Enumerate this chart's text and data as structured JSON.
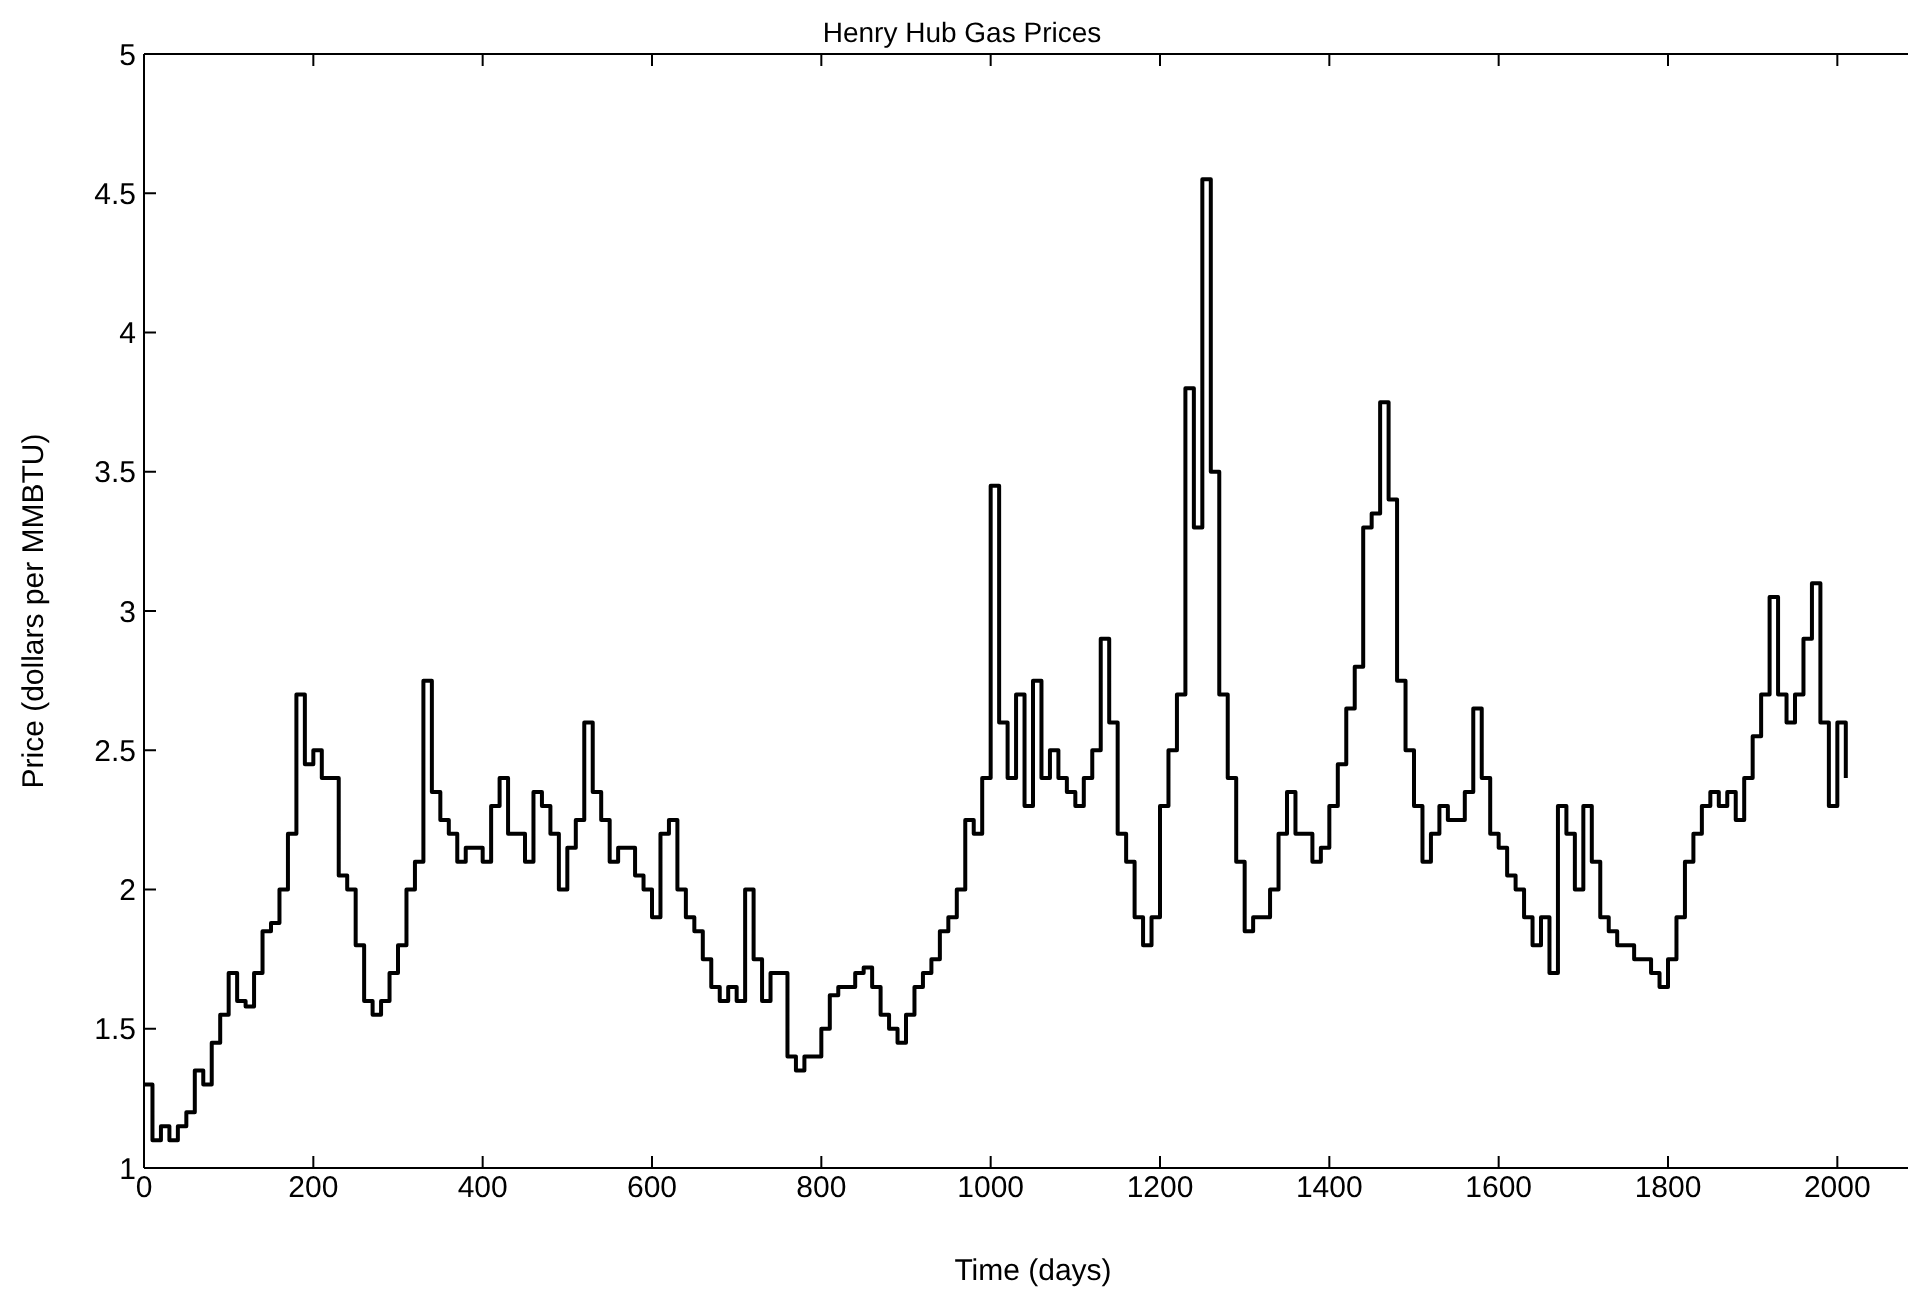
{
  "chart_data": {
    "type": "step",
    "title": "Henry Hub Gas Prices",
    "xlabel": "Time (days)",
    "ylabel": "Price (dollars per MMBTU)",
    "x": [
      0,
      10,
      20,
      30,
      40,
      50,
      60,
      70,
      80,
      90,
      100,
      110,
      120,
      130,
      140,
      150,
      160,
      170,
      180,
      190,
      200,
      210,
      220,
      230,
      240,
      250,
      260,
      270,
      280,
      290,
      300,
      310,
      320,
      330,
      340,
      350,
      360,
      370,
      380,
      390,
      400,
      410,
      420,
      430,
      440,
      450,
      460,
      470,
      480,
      490,
      500,
      510,
      520,
      530,
      540,
      550,
      560,
      570,
      580,
      590,
      600,
      610,
      620,
      630,
      640,
      650,
      660,
      670,
      680,
      690,
      700,
      710,
      720,
      730,
      740,
      750,
      760,
      770,
      780,
      790,
      800,
      810,
      820,
      830,
      840,
      850,
      860,
      870,
      880,
      890,
      900,
      910,
      920,
      930,
      940,
      950,
      960,
      970,
      980,
      990,
      1000,
      1010,
      1020,
      1030,
      1040,
      1050,
      1060,
      1070,
      1080,
      1090,
      1100,
      1110,
      1120,
      1130,
      1140,
      1150,
      1160,
      1170,
      1180,
      1190,
      1200,
      1210,
      1220,
      1230,
      1240,
      1250,
      1260,
      1270,
      1280,
      1290,
      1300,
      1310,
      1320,
      1330,
      1340,
      1350,
      1360,
      1370,
      1380,
      1390,
      1400,
      1410,
      1420,
      1430,
      1440,
      1450,
      1460,
      1470,
      1480,
      1490,
      1500,
      1510,
      1520,
      1530,
      1540,
      1550,
      1560,
      1570,
      1580,
      1590,
      1600,
      1610,
      1620,
      1630,
      1640,
      1650,
      1660,
      1670,
      1680,
      1690,
      1700,
      1710,
      1720,
      1730,
      1740,
      1750,
      1760,
      1770,
      1780,
      1790,
      1800,
      1810,
      1820,
      1830,
      1840,
      1850,
      1860,
      1870,
      1880,
      1890,
      1900,
      1910,
      1920,
      1930,
      1940,
      1950,
      1960,
      1970,
      1980,
      1990,
      2000,
      2010
    ],
    "series": [
      {
        "color": "#000000",
        "values": [
          1.3,
          1.1,
          1.15,
          1.1,
          1.15,
          1.2,
          1.35,
          1.3,
          1.45,
          1.55,
          1.7,
          1.6,
          1.58,
          1.7,
          1.85,
          1.88,
          2.0,
          2.2,
          2.7,
          2.45,
          2.5,
          2.4,
          2.4,
          2.05,
          2.0,
          1.8,
          1.6,
          1.55,
          1.6,
          1.7,
          1.8,
          2.0,
          2.1,
          2.75,
          2.35,
          2.25,
          2.2,
          2.1,
          2.15,
          2.15,
          2.1,
          2.3,
          2.4,
          2.2,
          2.2,
          2.1,
          2.35,
          2.3,
          2.2,
          2.0,
          2.15,
          2.25,
          2.6,
          2.35,
          2.25,
          2.1,
          2.15,
          2.15,
          2.05,
          2.0,
          1.9,
          2.2,
          2.25,
          2.0,
          1.9,
          1.85,
          1.75,
          1.65,
          1.6,
          1.65,
          1.6,
          2.0,
          1.75,
          1.6,
          1.7,
          1.7,
          1.4,
          1.35,
          1.4,
          1.4,
          1.5,
          1.62,
          1.65,
          1.65,
          1.7,
          1.72,
          1.65,
          1.55,
          1.5,
          1.45,
          1.55,
          1.65,
          1.7,
          1.75,
          1.85,
          1.9,
          2.0,
          2.25,
          2.2,
          2.4,
          3.45,
          2.6,
          2.4,
          2.7,
          2.3,
          2.75,
          2.4,
          2.5,
          2.4,
          2.35,
          2.3,
          2.4,
          2.5,
          2.9,
          2.6,
          2.2,
          2.1,
          1.9,
          1.8,
          1.9,
          2.3,
          2.5,
          2.7,
          3.8,
          3.3,
          4.55,
          3.5,
          2.7,
          2.4,
          2.1,
          1.85,
          1.9,
          1.9,
          2.0,
          2.2,
          2.35,
          2.2,
          2.2,
          2.1,
          2.15,
          2.3,
          2.45,
          2.65,
          2.8,
          3.3,
          3.35,
          3.75,
          3.4,
          2.75,
          2.5,
          2.3,
          2.1,
          2.2,
          2.3,
          2.25,
          2.25,
          2.35,
          2.65,
          2.4,
          2.2,
          2.15,
          2.05,
          2.0,
          1.9,
          1.8,
          1.9,
          1.7,
          2.3,
          2.2,
          2.0,
          2.3,
          2.1,
          1.9,
          1.85,
          1.8,
          1.8,
          1.75,
          1.75,
          1.7,
          1.65,
          1.75,
          1.9,
          2.1,
          2.2,
          2.3,
          2.35,
          2.3,
          2.35,
          2.25,
          2.4,
          2.55,
          2.7,
          3.05,
          2.7,
          2.6,
          2.7,
          2.9,
          3.1,
          2.6,
          2.3,
          2.6,
          2.4
        ]
      }
    ],
    "xlim": [
      0,
      2100
    ],
    "xticks": [
      0,
      200,
      400,
      600,
      800,
      1000,
      1200,
      1400,
      1600,
      1800,
      2000
    ],
    "ylim": [
      1,
      5
    ],
    "yticks": [
      1,
      1.5,
      2,
      2.5,
      3,
      3.5,
      4,
      4.5,
      5
    ],
    "grid": false,
    "legend": false
  }
}
